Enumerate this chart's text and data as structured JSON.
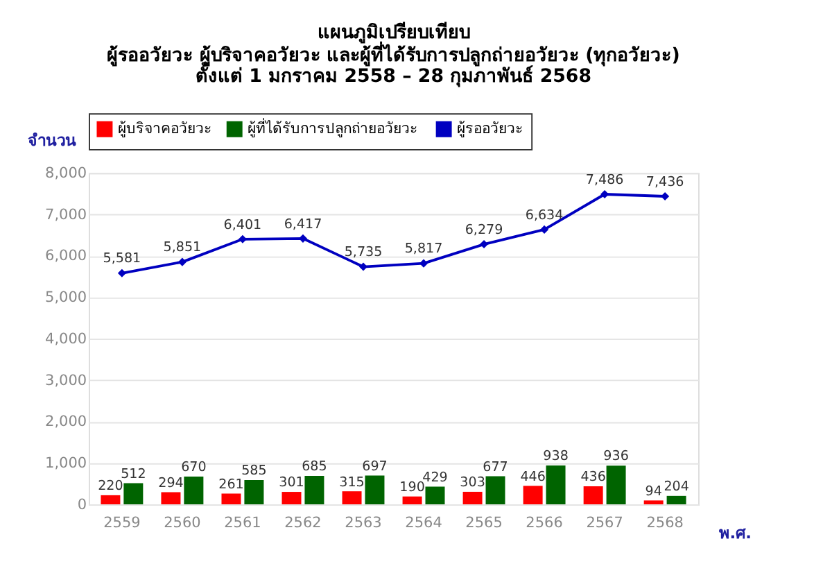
{
  "chart_data": {
    "type": "bar",
    "title": "แผนภูมิเปรียบเทียบ",
    "subtitle": "ผู้รออวัยวะ ผู้บริจาคอวัยวะ และผู้ที่ได้รับการปลูกถ่ายอวัยวะ (ทุกอวัยวะ)\nตั้งแต่ 1 มกราคม 2558 – 28 กุมภาพันธ์ 2568",
    "xlabel": "พ.ศ.",
    "ylabel": "จำนวน",
    "categories": [
      "2559",
      "2560",
      "2561",
      "2562",
      "2563",
      "2564",
      "2565",
      "2566",
      "2567",
      "2568"
    ],
    "series": [
      {
        "name": "ผู้บริจาคอวัยวะ",
        "color": "#ff0000",
        "values": [
          220,
          294,
          261,
          301,
          315,
          190,
          303,
          446,
          436,
          94
        ]
      },
      {
        "name": "ผู้ที่ได้รับการปลูกถ่ายอวัยวะ",
        "color": "#006400",
        "values": [
          512,
          670,
          585,
          685,
          697,
          429,
          677,
          938,
          936,
          204
        ]
      },
      {
        "name": "ผู้รออวัยวะ",
        "type": "line",
        "color": "#0000c0",
        "marker": "diamond",
        "values": [
          5581,
          5851,
          6401,
          6417,
          5735,
          5817,
          6279,
          6634,
          7486,
          7436
        ],
        "value_labels": [
          "5,581",
          "5,851",
          "6,401",
          "6,417",
          "5,735",
          "5,817",
          "6,279",
          "6,634",
          "7,486",
          "7,436"
        ]
      }
    ],
    "ylim": [
      0,
      8000
    ],
    "yticks": [
      0,
      {
        "value": 1000,
        "label": "1,000"
      },
      {
        "value": 2000,
        "label": "2,000"
      },
      {
        "value": 3000,
        "label": "3,000"
      },
      {
        "value": 4000,
        "label": "4,000"
      },
      {
        "value": 5000,
        "label": "5,000"
      },
      {
        "value": 6000,
        "label": "6,000"
      },
      {
        "value": 7000,
        "label": "7,000"
      },
      {
        "value": 8000,
        "label": "8,000"
      }
    ],
    "grid": "y",
    "legend": "top",
    "data_labels": true
  }
}
